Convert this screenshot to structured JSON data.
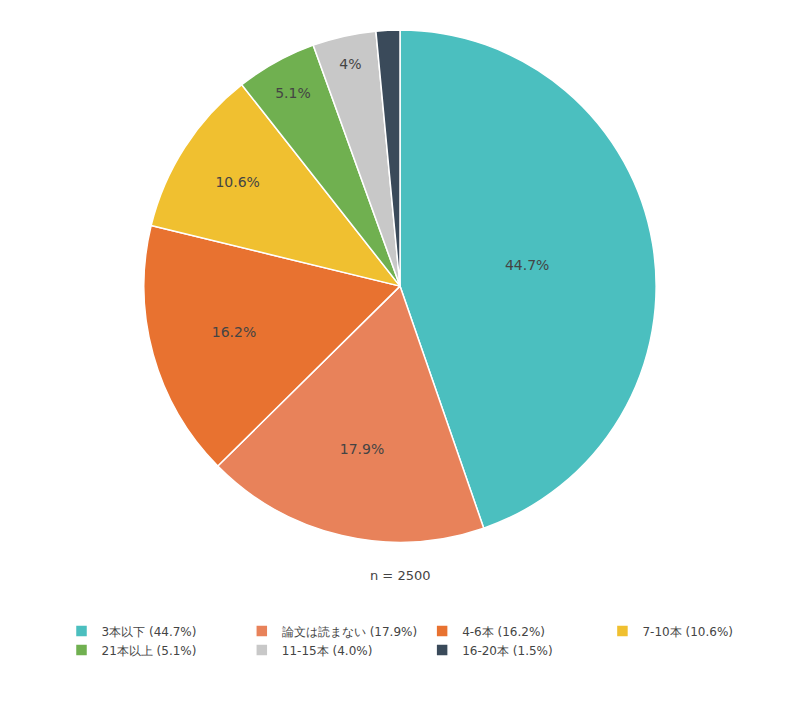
{
  "chart_data": {
    "type": "pie",
    "categories": [
      "3本以下 (44.7%)",
      "論文は読まない (17.9%)",
      "4-6本 (16.2%)",
      "7-10本 (10.6%)",
      "21本以上 (5.1%)",
      "11-15本 (4.0%)",
      "16-20本 (1.5%)"
    ],
    "values": [
      44.7,
      17.9,
      16.2,
      10.6,
      5.1,
      4.0,
      1.5
    ],
    "value_labels": [
      "44.7%",
      "17.9%",
      "16.2%",
      "10.6%",
      "5.1%",
      "4%",
      null
    ],
    "data_labels": true,
    "colors": [
      "#4BBFBF",
      "#E8825A",
      "#E87230",
      "#F0C030",
      "#70B050",
      "#C8C8C8",
      "#3A4A5A"
    ],
    "annotations": [
      "n = 2500"
    ],
    "legend": "bottom"
  }
}
